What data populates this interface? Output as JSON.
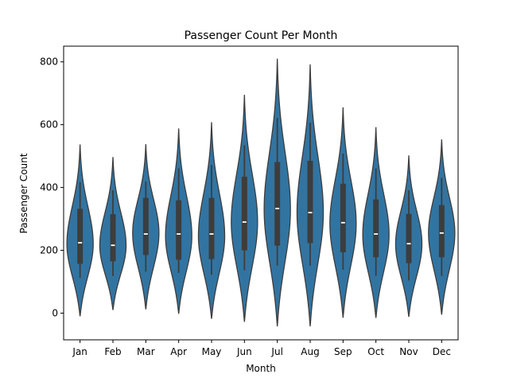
{
  "chart_data": {
    "type": "violin",
    "title": "Passenger Count Per Month",
    "xlabel": "Month",
    "ylabel": "Passenger Count",
    "ylim": [
      -85,
      850
    ],
    "yticks": [
      0,
      200,
      400,
      600,
      800
    ],
    "grid": false,
    "legend": "none",
    "categories": [
      "Jan",
      "Feb",
      "Mar",
      "Apr",
      "May",
      "Jun",
      "Jul",
      "Aug",
      "Sep",
      "Oct",
      "Nov",
      "Dec"
    ],
    "violins": [
      {
        "lo": -10,
        "hi": 537,
        "whisker_lo": 112,
        "whisker_hi": 417,
        "q1": 157,
        "median": 224,
        "q3": 332,
        "peak": 220
      },
      {
        "lo": 10,
        "hi": 497,
        "whisker_lo": 118,
        "whisker_hi": 391,
        "q1": 165,
        "median": 216,
        "q3": 315,
        "peak": 215
      },
      {
        "lo": 12,
        "hi": 538,
        "whisker_lo": 132,
        "whisker_hi": 419,
        "q1": 185,
        "median": 252,
        "q3": 367,
        "peak": 255
      },
      {
        "lo": -2,
        "hi": 588,
        "whisker_lo": 128,
        "whisker_hi": 461,
        "q1": 170,
        "median": 252,
        "q3": 359,
        "peak": 245
      },
      {
        "lo": -18,
        "hi": 608,
        "whisker_lo": 122,
        "whisker_hi": 472,
        "q1": 172,
        "median": 252,
        "q3": 367,
        "peak": 245
      },
      {
        "lo": -28,
        "hi": 695,
        "whisker_lo": 136,
        "whisker_hi": 535,
        "q1": 200,
        "median": 290,
        "q3": 434,
        "peak": 290
      },
      {
        "lo": -42,
        "hi": 810,
        "whisker_lo": 151,
        "whisker_hi": 622,
        "q1": 215,
        "median": 333,
        "q3": 481,
        "peak": 330
      },
      {
        "lo": -42,
        "hi": 792,
        "whisker_lo": 151,
        "whisker_hi": 606,
        "q1": 223,
        "median": 320,
        "q3": 485,
        "peak": 320
      },
      {
        "lo": -15,
        "hi": 655,
        "whisker_lo": 138,
        "whisker_hi": 508,
        "q1": 194,
        "median": 288,
        "q3": 412,
        "peak": 285
      },
      {
        "lo": -15,
        "hi": 592,
        "whisker_lo": 119,
        "whisker_hi": 461,
        "q1": 178,
        "median": 252,
        "q3": 362,
        "peak": 250
      },
      {
        "lo": -12,
        "hi": 502,
        "whisker_lo": 104,
        "whisker_hi": 391,
        "q1": 159,
        "median": 221,
        "q3": 316,
        "peak": 220
      },
      {
        "lo": -5,
        "hi": 553,
        "whisker_lo": 118,
        "whisker_hi": 431,
        "q1": 178,
        "median": 255,
        "q3": 344,
        "peak": 255
      }
    ],
    "colors": {
      "violin_fill": "#3274a1",
      "violin_edge": "#3d3d3d",
      "box": "#3d3d3d",
      "median": "#ffffff"
    }
  }
}
